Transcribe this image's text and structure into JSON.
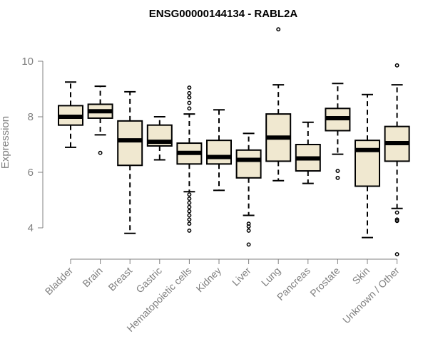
{
  "chart_data": {
    "type": "boxplot",
    "title": "ENSG00000144134 - RABL2A",
    "xlabel": "",
    "ylabel": "Expression",
    "ylim": [
      3.3,
      11.3
    ],
    "yticks": [
      4,
      6,
      8,
      10
    ],
    "grid": false,
    "box_color": "#f0e8d0",
    "line_color": "#000000",
    "axis_color": "#808080",
    "categories": [
      "Bladder",
      "Brain",
      "Breast",
      "Gastric",
      "Hematopoietic cells",
      "Kidney",
      "Liver",
      "Lung",
      "Pancreas",
      "Prostate",
      "Skin",
      "Unknown / Other"
    ],
    "series": [
      {
        "category": "Bladder",
        "whisker_low": 6.9,
        "q1": 7.7,
        "median": 8.0,
        "q3": 8.4,
        "whisker_high": 9.25,
        "outliers": []
      },
      {
        "category": "Brain",
        "whisker_low": 7.35,
        "q1": 7.95,
        "median": 8.2,
        "q3": 8.45,
        "whisker_high": 9.1,
        "outliers": [
          6.7
        ]
      },
      {
        "category": "Breast",
        "whisker_low": 3.8,
        "q1": 6.25,
        "median": 7.15,
        "q3": 7.85,
        "whisker_high": 8.9,
        "outliers": []
      },
      {
        "category": "Gastric",
        "whisker_low": 6.45,
        "q1": 6.95,
        "median": 7.1,
        "q3": 7.7,
        "whisker_high": 8.0,
        "outliers": []
      },
      {
        "category": "Hematopoietic cells",
        "whisker_low": 5.3,
        "q1": 6.3,
        "median": 6.7,
        "q3": 7.05,
        "whisker_high": 8.1,
        "outliers": [
          3.9,
          4.15,
          4.3,
          4.45,
          4.6,
          4.75,
          4.9,
          5.05,
          5.2,
          8.3,
          8.5,
          8.7,
          8.85,
          9.05
        ]
      },
      {
        "category": "Kidney",
        "whisker_low": 5.35,
        "q1": 6.3,
        "median": 6.55,
        "q3": 7.15,
        "whisker_high": 8.25,
        "outliers": []
      },
      {
        "category": "Liver",
        "whisker_low": 4.45,
        "q1": 5.8,
        "median": 6.45,
        "q3": 6.8,
        "whisker_high": 7.4,
        "outliers": [
          3.4,
          3.9,
          4.05,
          4.15
        ]
      },
      {
        "category": "Lung",
        "whisker_low": 5.7,
        "q1": 6.4,
        "median": 7.25,
        "q3": 8.1,
        "whisker_high": 9.15,
        "outliers": [
          11.15
        ]
      },
      {
        "category": "Pancreas",
        "whisker_low": 5.6,
        "q1": 6.05,
        "median": 6.5,
        "q3": 7.0,
        "whisker_high": 7.8,
        "outliers": []
      },
      {
        "category": "Prostate",
        "whisker_low": 6.65,
        "q1": 7.5,
        "median": 7.95,
        "q3": 8.3,
        "whisker_high": 9.2,
        "outliers": [
          5.8,
          6.05
        ]
      },
      {
        "category": "Skin",
        "whisker_low": 3.65,
        "q1": 5.5,
        "median": 6.8,
        "q3": 7.15,
        "whisker_high": 8.8,
        "outliers": []
      },
      {
        "category": "Unknown / Other",
        "whisker_low": 4.7,
        "q1": 6.4,
        "median": 7.05,
        "q3": 7.65,
        "whisker_high": 9.15,
        "outliers": [
          3.05,
          4.25,
          4.3,
          4.55,
          9.85
        ]
      }
    ]
  }
}
